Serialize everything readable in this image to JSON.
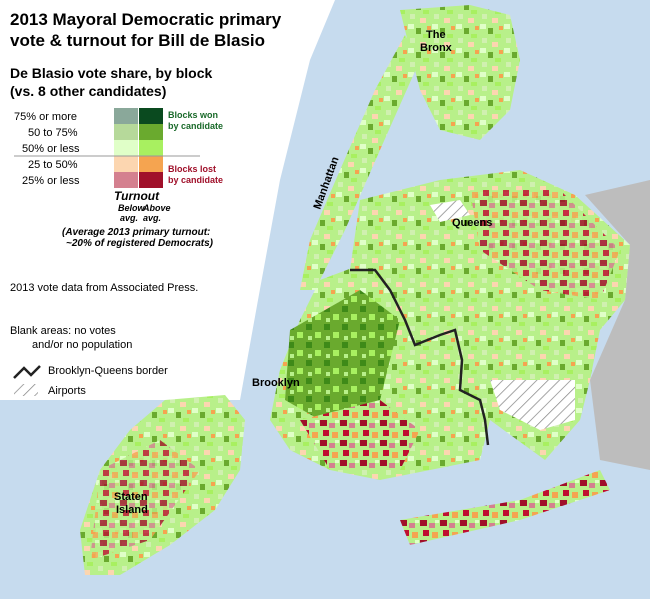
{
  "header": {
    "title": [
      "2013 Mayoral Democratic primary",
      "vote & turnout for Bill de Blasio"
    ],
    "subtitle": [
      "De Blasio vote share, by block",
      "(vs. 8 other candidates)"
    ]
  },
  "legend": {
    "rows": [
      "75% or more",
      "50 to 75%",
      "50% or less",
      "25 to 50%",
      "25% or less"
    ],
    "won": [
      "Blocks won",
      "by candidate"
    ],
    "lost": [
      "Blocks lost",
      "by candidate"
    ],
    "turnout": "Turnout",
    "below": [
      "Below",
      "avg."
    ],
    "above": [
      "Above",
      "avg."
    ],
    "average": [
      "(Average 2013 primary turnout:",
      "~20% of registered Democrats)"
    ]
  },
  "notes": {
    "source": "2013 vote data from Associated Press.",
    "blank": [
      "Blank areas: no votes",
      "and/or no population"
    ],
    "border": "Brooklyn-Queens border",
    "airports": "Airports"
  },
  "places": {
    "bronx": [
      "The",
      "Bronx"
    ],
    "queens": "Queens",
    "manhattan": "Manhattan",
    "brooklyn": "Brooklyn",
    "staten_island": [
      "Staten",
      "Island"
    ]
  }
}
